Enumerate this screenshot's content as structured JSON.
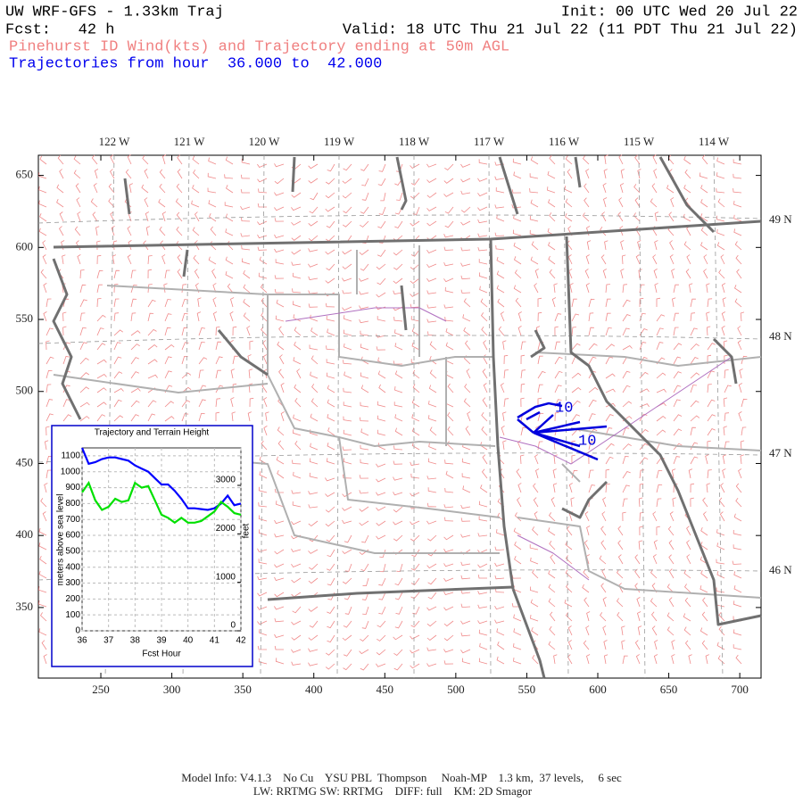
{
  "header": {
    "title": "UW WRF-GFS - 1.33km Traj",
    "init": "Init: 00 UTC Wed 20 Jul 22",
    "fcst": "Fcst:   42 h",
    "valid": "Valid: 18 UTC Thu 21 Jul 22 (11 PDT Thu 21 Jul 22)",
    "subtitle": "Pinehurst ID Wind(kts) and Trajectory ending at 50m AGL",
    "trajectories": "Trajectories from hour  36.000 to  42.000"
  },
  "map": {
    "xlim": [
      206,
      715
    ],
    "ylim": [
      301,
      664
    ],
    "xticks": [
      250,
      300,
      350,
      400,
      450,
      500,
      550,
      600,
      650,
      700
    ],
    "yticks": [
      350,
      400,
      450,
      500,
      550,
      600,
      650
    ],
    "lon_labels": [
      "122 W",
      "121 W",
      "120 W",
      "119 W",
      "118 W",
      "117 W",
      "116 W",
      "115 W",
      "114 W"
    ],
    "lat_labels": [
      "49 N",
      "48 N",
      "47 N",
      "46 N"
    ],
    "trajectory_labels": [
      "10",
      "10"
    ]
  },
  "chart_data": {
    "type": "line",
    "title": "Trajectory and Terrain Height",
    "x_label": "Fcst Hour",
    "y_label": "meters above sea level",
    "y2_label": "feet",
    "x": [
      36,
      36.25,
      36.5,
      36.75,
      37,
      37.25,
      37.5,
      37.75,
      38,
      38.25,
      38.5,
      38.75,
      39,
      39.25,
      39.5,
      39.75,
      40,
      40.25,
      40.5,
      40.75,
      41,
      41.25,
      41.5,
      41.75,
      42
    ],
    "xlim": [
      36,
      42
    ],
    "xticks": [
      36,
      37,
      38,
      39,
      40,
      41,
      42
    ],
    "ylim": [
      0,
      1150
    ],
    "yticks": [
      0,
      100,
      200,
      300,
      400,
      500,
      600,
      700,
      800,
      900,
      1000,
      1100
    ],
    "y2lim": [
      0,
      3773
    ],
    "y2ticks": [
      0,
      1000,
      2000,
      3000
    ],
    "grid": true,
    "series": [
      {
        "color": "#0000ff",
        "values": [
          1150,
          1050,
          1060,
          1080,
          1090,
          1090,
          1080,
          1070,
          1040,
          1020,
          1000,
          960,
          920,
          920,
          880,
          830,
          770,
          770,
          765,
          760,
          770,
          800,
          850,
          790,
          800
        ]
      },
      {
        "color": "#00e000",
        "values": [
          870,
          930,
          820,
          760,
          780,
          830,
          810,
          820,
          930,
          900,
          910,
          820,
          730,
          710,
          680,
          710,
          680,
          680,
          690,
          720,
          750,
          810,
          780,
          740,
          730
        ]
      }
    ]
  },
  "footer": {
    "line1": "Model Info: V4.1.3    No Cu    YSU PBL  Thompson     Noah-MP    1.3 km,  37 levels,     6 sec",
    "line2": "LW: RRTMG SW: RRTMG    DIFF: full    KM: 2D Smagor"
  }
}
